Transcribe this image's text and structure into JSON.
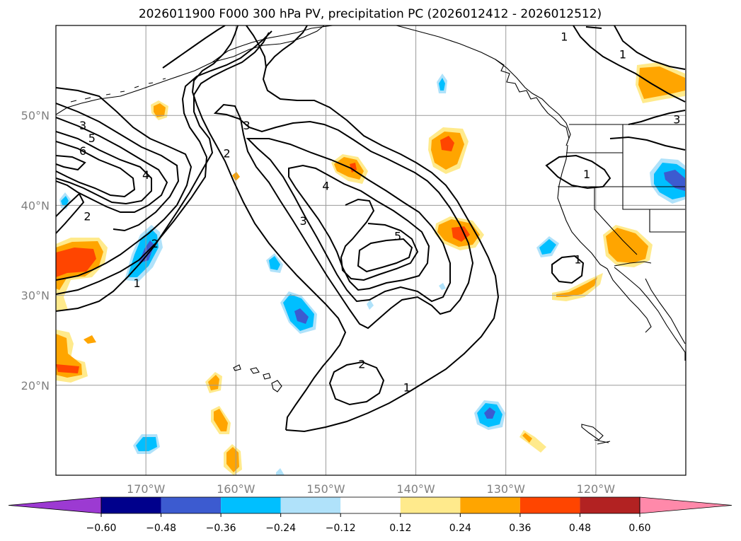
{
  "chart_data": {
    "type": "contour-map",
    "title": "2026011900 F000 300 hPa PV, precipitation PC (2026012412 - 2026012512)",
    "map_extent": {
      "lon": [
        -180,
        -110
      ],
      "lat": [
        10,
        60
      ]
    },
    "lon_ticks": [
      {
        "value": -170,
        "label": "170°W"
      },
      {
        "value": -160,
        "label": "160°W"
      },
      {
        "value": -150,
        "label": "150°W"
      },
      {
        "value": -140,
        "label": "140°W"
      },
      {
        "value": -130,
        "label": "130°W"
      },
      {
        "value": -120,
        "label": "120°W"
      }
    ],
    "lat_ticks": [
      {
        "value": 50,
        "label": "50°N"
      },
      {
        "value": 40,
        "label": "40°N"
      },
      {
        "value": 30,
        "label": "30°N"
      },
      {
        "value": 20,
        "label": "20°N"
      }
    ],
    "pv_contour_labels": [
      {
        "text": "1",
        "lon": -123.5,
        "lat": 58.8
      },
      {
        "text": "1",
        "lon": -117.0,
        "lat": 56.8
      },
      {
        "text": "3",
        "lon": -111.0,
        "lat": 49.6
      },
      {
        "text": "1",
        "lon": -121.0,
        "lat": 43.5
      },
      {
        "text": "1",
        "lon": -122.0,
        "lat": 34.0
      },
      {
        "text": "3",
        "lon": -177.0,
        "lat": 48.9
      },
      {
        "text": "5",
        "lon": -176.0,
        "lat": 47.5
      },
      {
        "text": "6",
        "lon": -177.0,
        "lat": 46.1
      },
      {
        "text": "4",
        "lon": -170.0,
        "lat": 43.4
      },
      {
        "text": "3",
        "lon": -158.8,
        "lat": 48.9
      },
      {
        "text": "2",
        "lon": -161.0,
        "lat": 45.8
      },
      {
        "text": "4",
        "lon": -150.0,
        "lat": 42.2
      },
      {
        "text": "3",
        "lon": -152.5,
        "lat": 38.3
      },
      {
        "text": "5",
        "lon": -142.0,
        "lat": 36.6
      },
      {
        "text": "2",
        "lon": -176.5,
        "lat": 38.8
      },
      {
        "text": "2",
        "lon": -169.0,
        "lat": 35.8
      },
      {
        "text": "1",
        "lon": -171.0,
        "lat": 31.4
      },
      {
        "text": "2",
        "lon": -146.0,
        "lat": 22.4
      },
      {
        "text": "1",
        "lon": -141.0,
        "lat": 19.8
      }
    ],
    "colorbar": {
      "levels": [
        -0.6,
        -0.48,
        -0.36,
        -0.24,
        -0.12,
        0.12,
        0.24,
        0.36,
        0.48,
        0.6
      ],
      "tick_labels": [
        "−0.60",
        "−0.48",
        "−0.36",
        "−0.24",
        "−0.12",
        "0.12",
        "0.24",
        "0.36",
        "0.48",
        "0.60"
      ],
      "colors": [
        "#9c3ad2",
        "#00008c",
        "#3c5bd0",
        "#00bfff",
        "#b0e2fa",
        "#ffffff",
        "#ffea8c",
        "#ffa500",
        "#ff4500",
        "#b22222",
        "#ff89aa"
      ],
      "extend": "both"
    }
  }
}
